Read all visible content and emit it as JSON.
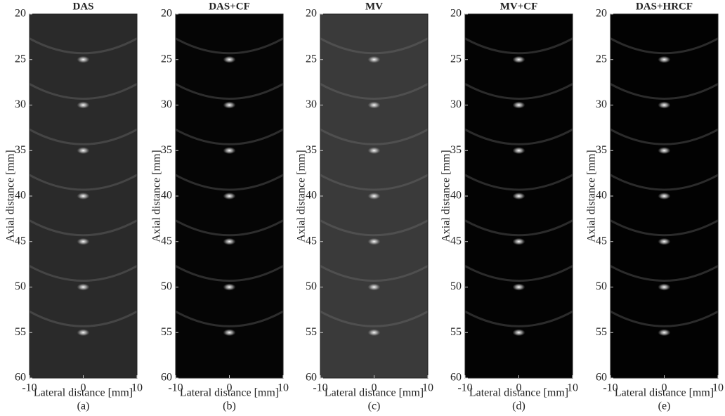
{
  "chart_data": [
    {
      "type": "image",
      "title": "DAS",
      "xlabel": "Lateral distance [mm]",
      "ylabel": "Axial distance [mm]",
      "caption": "(a)",
      "xlim": [
        -10,
        10
      ],
      "ylim": [
        60,
        20
      ],
      "xticks": [
        -10,
        0,
        10
      ],
      "yticks": [
        20,
        25,
        30,
        35,
        40,
        45,
        50,
        55,
        60
      ],
      "background": "#2a2a2a",
      "points": {
        "x": [
          0,
          0,
          0,
          0,
          0,
          0,
          0
        ],
        "y": [
          25,
          30,
          35,
          40,
          45,
          50,
          55
        ]
      }
    },
    {
      "type": "image",
      "title": "DAS+CF",
      "xlabel": "Lateral distance [mm]",
      "ylabel": "Axial distance [mm]",
      "caption": "(b)",
      "xlim": [
        -10,
        10
      ],
      "ylim": [
        60,
        20
      ],
      "xticks": [
        -10,
        0,
        10
      ],
      "yticks": [
        20,
        25,
        30,
        35,
        40,
        45,
        50,
        55,
        60
      ],
      "background": "#050505",
      "points": {
        "x": [
          0,
          0,
          0,
          0,
          0,
          0,
          0
        ],
        "y": [
          25,
          30,
          35,
          40,
          45,
          50,
          55
        ]
      }
    },
    {
      "type": "image",
      "title": "MV",
      "xlabel": "Lateral distance [mm]",
      "ylabel": "Axial distance [mm]",
      "caption": "(c)",
      "xlim": [
        -10,
        10
      ],
      "ylim": [
        60,
        20
      ],
      "xticks": [
        -10,
        0,
        10
      ],
      "yticks": [
        20,
        25,
        30,
        35,
        40,
        45,
        50,
        55,
        60
      ],
      "background": "#3a3a3a",
      "points": {
        "x": [
          0,
          0,
          0,
          0,
          0,
          0,
          0
        ],
        "y": [
          25,
          30,
          35,
          40,
          45,
          50,
          55
        ]
      }
    },
    {
      "type": "image",
      "title": "MV+CF",
      "xlabel": "Lateral distance [mm]",
      "ylabel": "Axial distance [mm]",
      "caption": "(d)",
      "xlim": [
        -10,
        10
      ],
      "ylim": [
        60,
        20
      ],
      "xticks": [
        -10,
        0,
        10
      ],
      "yticks": [
        20,
        25,
        30,
        35,
        40,
        45,
        50,
        55,
        60
      ],
      "background": "#030303",
      "points": {
        "x": [
          0,
          0,
          0,
          0,
          0,
          0,
          0
        ],
        "y": [
          25,
          30,
          35,
          40,
          45,
          50,
          55
        ]
      }
    },
    {
      "type": "image",
      "title": "DAS+HRCF",
      "xlabel": "Lateral distance [mm]",
      "ylabel": "Axial distance [mm]",
      "caption": "(e)",
      "xlim": [
        -10,
        10
      ],
      "ylim": [
        60,
        20
      ],
      "xticks": [
        -10,
        0,
        10
      ],
      "yticks": [
        20,
        25,
        30,
        35,
        40,
        45,
        50,
        55,
        60
      ],
      "background": "#020202",
      "points": {
        "x": [
          0,
          0,
          0,
          0,
          0,
          0,
          0
        ],
        "y": [
          25,
          30,
          35,
          40,
          45,
          50,
          55
        ]
      }
    }
  ]
}
